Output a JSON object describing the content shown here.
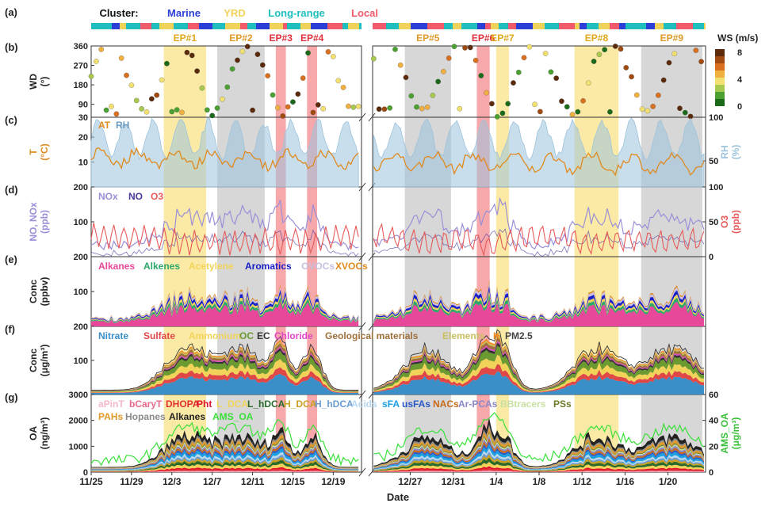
{
  "colors": {
    "marine": "#2b3fd6",
    "yrd": "#f2d35a",
    "longrange": "#1fbfbf",
    "local": "#f05a6a",
    "grey_shade": "#d7d7d7",
    "yellow_shade": "#fbeaa6",
    "red_shade": "#f7a8ab",
    "at": "#e08a1e",
    "rh": "#9cc3dc",
    "nox": "#9a8fd8",
    "no": "#4a3aa0",
    "o3": "#e85a5a"
  },
  "chart_data": [
    {
      "panel": "a",
      "type": "categorical-strip",
      "label_prefix": "Cluster:",
      "categories": [
        "Marine",
        "YRD",
        "Long-range",
        "Local"
      ]
    },
    {
      "panel": "b",
      "type": "scatter",
      "ylabel": "WD",
      "yunit": "(°)",
      "yticks": [
        30,
        90,
        180,
        270,
        360
      ],
      "ylim": [
        30,
        360
      ],
      "colorbar": {
        "title": "WS (m/s)",
        "ticks": [
          0,
          4,
          8
        ],
        "tick_labels": [
          "0",
          "4",
          "8"
        ]
      },
      "episodes": [
        "EP#1",
        "EP#2",
        "EP#3",
        "EP#4",
        "EP#5",
        "EP#6",
        "EP#7",
        "EP#8",
        "EP#9"
      ]
    },
    {
      "panel": "c",
      "type": "line",
      "ylabel": "T",
      "yunit": "(°C)",
      "yticks": [
        10,
        20
      ],
      "y2label": "RH",
      "y2unit": "(%)",
      "y2ticks": [
        50,
        100
      ],
      "series": [
        {
          "name": "AT"
        },
        {
          "name": "RH"
        }
      ]
    },
    {
      "panel": "d",
      "type": "line",
      "ylabel": "NO, NOx",
      "yunit": "(ppb)",
      "yticks": [
        100,
        200
      ],
      "y2label": "O3",
      "y2unit": "(ppb)",
      "y2ticks": [
        0,
        50,
        100
      ],
      "series": [
        {
          "name": "NOx"
        },
        {
          "name": "NO"
        },
        {
          "name": "O3"
        }
      ]
    },
    {
      "panel": "e",
      "type": "area",
      "ylabel": "Conc",
      "yunit": "(ppbv)",
      "yticks": [
        100,
        200
      ],
      "series": [
        {
          "name": "Alkanes",
          "color": "#e8489a"
        },
        {
          "name": "Alkenes",
          "color": "#2ca86a"
        },
        {
          "name": "Acetylene",
          "color": "#f2d35a"
        },
        {
          "name": "Aromatics",
          "color": "#1a20c8"
        },
        {
          "name": "OVOCs",
          "color": "#c8c0e0"
        },
        {
          "name": "XVOCs",
          "color": "#e08a1e"
        }
      ]
    },
    {
      "panel": "f",
      "type": "area",
      "ylabel": "Conc",
      "yunit": "(μg/m³)",
      "yticks": [
        100,
        200
      ],
      "series": [
        {
          "name": "Nitrate",
          "color": "#3a8fc8"
        },
        {
          "name": "Sulfate",
          "color": "#e04848"
        },
        {
          "name": "Ammonium",
          "color": "#f2d35a"
        },
        {
          "name": "OC",
          "color": "#6a9a30"
        },
        {
          "name": "EC",
          "color": "#333333"
        },
        {
          "name": "Chloride",
          "color": "#e048c8"
        },
        {
          "name": "Geological materials",
          "color": "#a0703a"
        },
        {
          "name": "Elements",
          "color": "#c8c060"
        },
        {
          "name": "K",
          "color": "#f08a1a"
        },
        {
          "name": "PM2.5",
          "color": "#444444"
        }
      ]
    },
    {
      "panel": "g",
      "type": "area",
      "ylabel": "OA",
      "yunit": "(ng/m³)",
      "yticks": [
        0,
        1000,
        2000,
        3000
      ],
      "y2label": "AMS_OA",
      "y2unit": "(μg/m³)",
      "y2ticks": [
        0,
        20,
        40,
        60
      ],
      "series": [
        {
          "name": "aPinT",
          "color": "#f4b8c8"
        },
        {
          "name": "bCaryT",
          "color": "#e86a8a"
        },
        {
          "name": "DHOPA",
          "color": "#e03030"
        },
        {
          "name": "Pht",
          "color": "#e0102a"
        },
        {
          "name": "L_DCA",
          "color": "#f2d35a"
        },
        {
          "name": "L_hDCA",
          "color": "#2a6a2a"
        },
        {
          "name": "H_DCA",
          "color": "#c8a020"
        },
        {
          "name": "H_hDCA",
          "color": "#6a9ad0"
        },
        {
          "name": "Acids",
          "color": "#b8d8f0"
        },
        {
          "name": "sFA",
          "color": "#1aa0e0"
        },
        {
          "name": "usFAs",
          "color": "#2a58c8"
        },
        {
          "name": "NACs",
          "color": "#c86a1a"
        },
        {
          "name": "Ar-PCAs",
          "color": "#8a88c8"
        },
        {
          "name": "BBtracers",
          "color": "#c8e0a0"
        },
        {
          "name": "PSs",
          "color": "#6a7a2a"
        },
        {
          "name": "PAHs",
          "color": "#e09a2a"
        },
        {
          "name": "Hopanes",
          "color": "#8a8a8a"
        },
        {
          "name": "Alkanes",
          "color": "#222222"
        },
        {
          "name": "AMS_OA",
          "color": "#3ae03a"
        }
      ]
    }
  ],
  "panels": [
    "(a)",
    "(b)",
    "(c)",
    "(d)",
    "(e)",
    "(f)",
    "(g)"
  ],
  "x_axis": {
    "title": "Date",
    "ticks": [
      "11/25",
      "11/29",
      "12/3",
      "12/7",
      "12/11",
      "12/15",
      "12/19",
      "12/27",
      "12/31",
      "1/4",
      "1/8",
      "1/12",
      "1/16",
      "1/20"
    ]
  }
}
